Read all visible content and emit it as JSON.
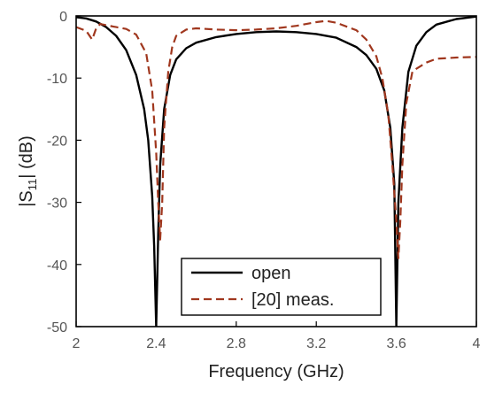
{
  "chart_data": {
    "type": "line",
    "xlabel": "Frequency (GHz)",
    "ylabel": "|S11| (dB)",
    "ylabel_parts": {
      "prefix": "|S",
      "sub": "11",
      "suffix": "|  (dB)"
    },
    "xlim": [
      2,
      4
    ],
    "ylim": [
      -50,
      0
    ],
    "x_ticks": [
      "2",
      "2.4",
      "2.8",
      "3.2",
      "3.6",
      "4"
    ],
    "x_tick_values": [
      2,
      2.4,
      2.8,
      3.2,
      3.6,
      4
    ],
    "y_ticks": [
      "0",
      "-10",
      "-20",
      "-30",
      "-40",
      "-50"
    ],
    "y_tick_values": [
      0,
      -10,
      -20,
      -30,
      -40,
      -50
    ],
    "grid": false,
    "legend_position": "bottom-center",
    "series": [
      {
        "name": "open",
        "color": "#000000",
        "style": "solid",
        "x": [
          2.0,
          2.05,
          2.1,
          2.15,
          2.2,
          2.25,
          2.3,
          2.34,
          2.36,
          2.38,
          2.39,
          2.4,
          2.41,
          2.42,
          2.44,
          2.47,
          2.5,
          2.55,
          2.6,
          2.7,
          2.8,
          2.9,
          3.0,
          3.1,
          3.2,
          3.3,
          3.4,
          3.45,
          3.5,
          3.54,
          3.57,
          3.59,
          3.6,
          3.61,
          3.63,
          3.66,
          3.7,
          3.75,
          3.8,
          3.9,
          4.0
        ],
        "y": [
          -0.2,
          -0.4,
          -0.9,
          -1.8,
          -3.2,
          -5.5,
          -9.5,
          -15,
          -20,
          -29,
          -37,
          -50,
          -35,
          -24,
          -15,
          -9.5,
          -7.0,
          -5.2,
          -4.3,
          -3.4,
          -2.9,
          -2.6,
          -2.5,
          -2.6,
          -2.9,
          -3.5,
          -5.0,
          -6.3,
          -8.5,
          -12,
          -18,
          -27,
          -50,
          -30,
          -18,
          -9,
          -4.8,
          -2.6,
          -1.4,
          -0.5,
          -0.1
        ]
      },
      {
        "name": "[20] meas.",
        "color": "#A0371E",
        "style": "dashed",
        "x": [
          2.0,
          2.05,
          2.08,
          2.1,
          2.12,
          2.15,
          2.2,
          2.25,
          2.3,
          2.35,
          2.38,
          2.4,
          2.41,
          2.42,
          2.43,
          2.44,
          2.46,
          2.48,
          2.5,
          2.55,
          2.6,
          2.7,
          2.8,
          2.9,
          3.0,
          3.1,
          3.2,
          3.25,
          3.3,
          3.4,
          3.45,
          3.5,
          3.53,
          3.56,
          3.58,
          3.6,
          3.61,
          3.62,
          3.63,
          3.65,
          3.68,
          3.7,
          3.75,
          3.8,
          3.9,
          4.0
        ],
        "y": [
          -1.8,
          -2.4,
          -3.8,
          -2.0,
          -1.3,
          -1.5,
          -1.8,
          -2.1,
          -3.0,
          -6.0,
          -12,
          -22,
          -30,
          -36,
          -30,
          -18,
          -9,
          -5,
          -3.2,
          -2.2,
          -2.0,
          -2.2,
          -2.3,
          -2.2,
          -2.0,
          -1.6,
          -1.0,
          -0.8,
          -1.1,
          -2.3,
          -3.8,
          -6.5,
          -10,
          -16,
          -24,
          -33,
          -39,
          -33,
          -24,
          -14,
          -9,
          -8.5,
          -7.5,
          -6.9,
          -6.7,
          -6.6
        ]
      }
    ]
  }
}
